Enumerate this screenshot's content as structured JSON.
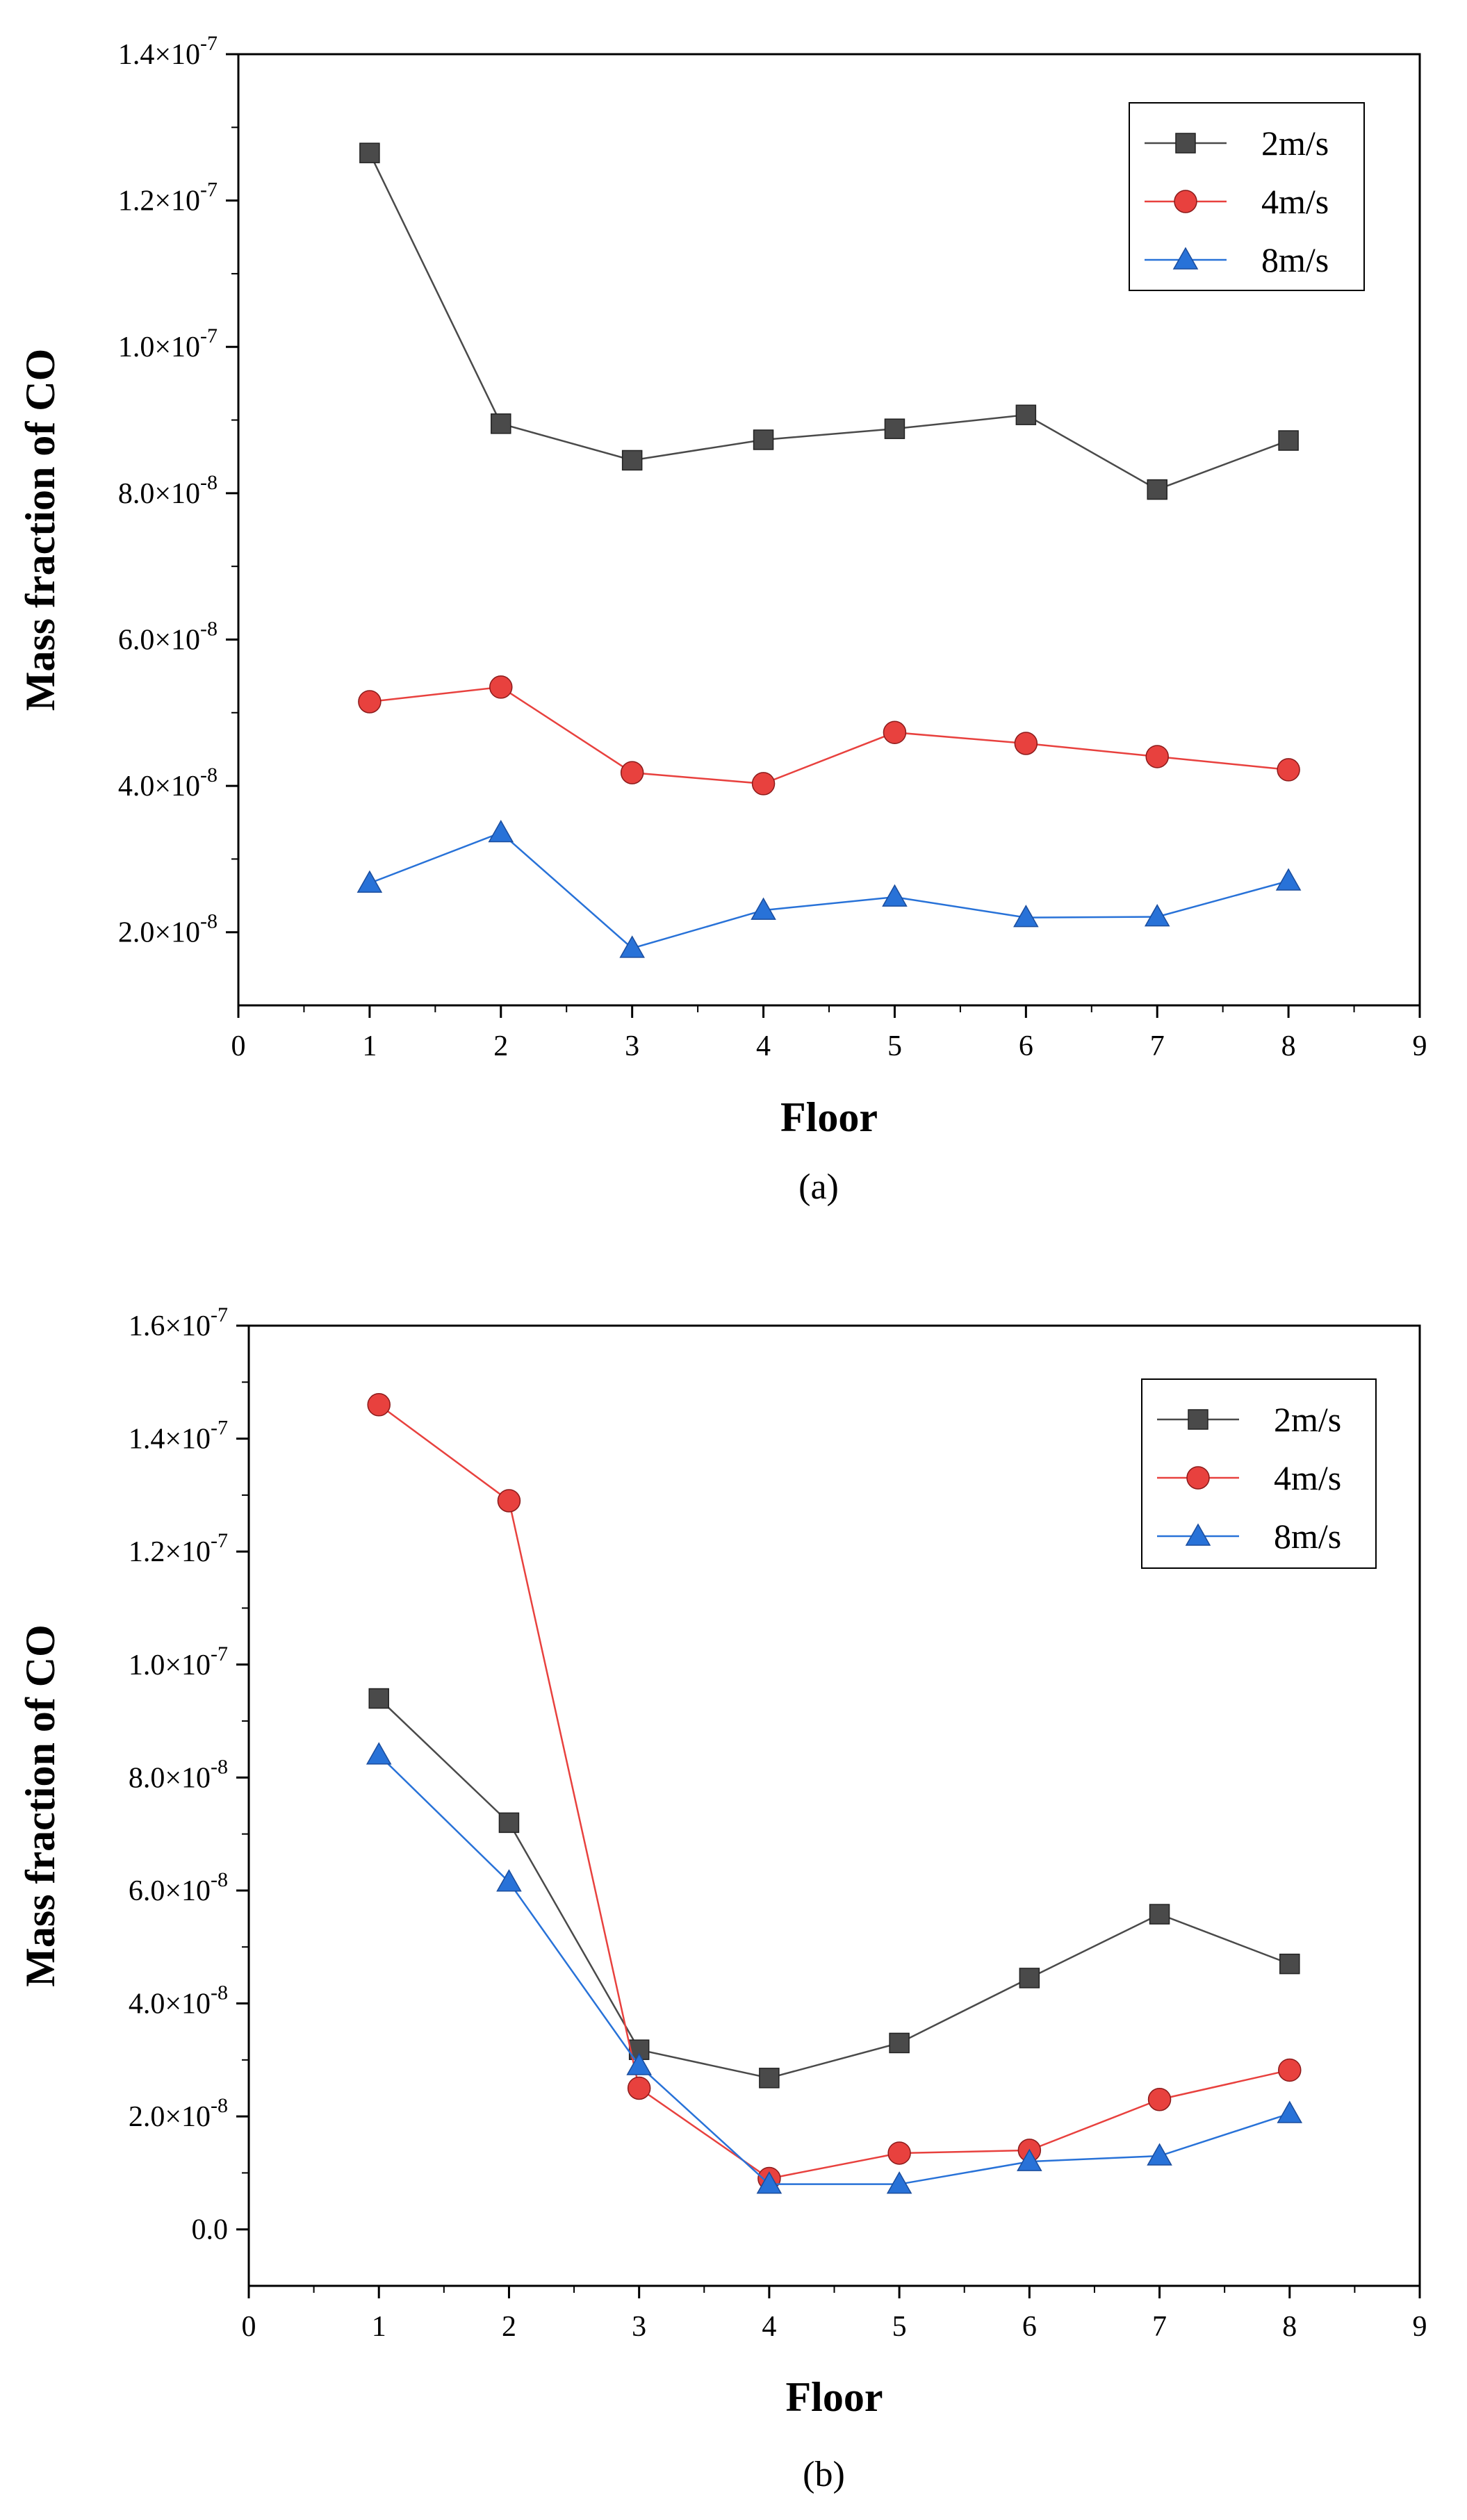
{
  "chart_data": [
    {
      "type": "line",
      "panel_label": "(a)",
      "xlabel": "Floor",
      "ylabel": "Mass fraction of CO",
      "xlim": [
        0,
        9
      ],
      "ylim": [
        1e-08,
        1.4e-07
      ],
      "x_ticks": [
        0,
        1,
        2,
        3,
        4,
        5,
        6,
        7,
        8,
        9
      ],
      "x_tick_labels": [
        "0",
        "1",
        "2",
        "3",
        "4",
        "5",
        "6",
        "7",
        "8",
        "9"
      ],
      "y_ticks": [
        2e-08,
        4e-08,
        6e-08,
        8e-08,
        1e-07,
        1.2e-07,
        1.4e-07
      ],
      "y_tick_labels": [
        {
          "mantissa": "2.0×10",
          "exponent": "-8"
        },
        {
          "mantissa": "4.0×10",
          "exponent": "-8"
        },
        {
          "mantissa": "6.0×10",
          "exponent": "-8"
        },
        {
          "mantissa": "8.0×10",
          "exponent": "-8"
        },
        {
          "mantissa": "1.0×10",
          "exponent": "-7"
        },
        {
          "mantissa": "1.2×10",
          "exponent": "-7"
        },
        {
          "mantissa": "1.4×10",
          "exponent": "-7"
        }
      ],
      "legend_position": "top-right",
      "x": [
        1,
        2,
        3,
        4,
        5,
        6,
        7,
        8
      ],
      "series": [
        {
          "name": "2m/s",
          "marker": "square",
          "color": "#4a4a4a",
          "values": [
            1.265e-07,
            8.95e-08,
            8.45e-08,
            8.73e-08,
            8.88e-08,
            9.07e-08,
            8.05e-08,
            8.72e-08
          ]
        },
        {
          "name": "4m/s",
          "marker": "circle",
          "color": "#e8413e",
          "values": [
            5.15e-08,
            5.35e-08,
            4.18e-08,
            4.03e-08,
            4.73e-08,
            4.58e-08,
            4.4e-08,
            4.22e-08
          ]
        },
        {
          "name": "8m/s",
          "marker": "triangle",
          "color": "#2872d8",
          "values": [
            2.67e-08,
            3.36e-08,
            1.78e-08,
            2.3e-08,
            2.48e-08,
            2.2e-08,
            2.21e-08,
            2.7e-08
          ]
        }
      ]
    },
    {
      "type": "line",
      "panel_label": "(b)",
      "xlabel": "Floor",
      "ylabel": "Mass fraction of CO",
      "xlim": [
        0,
        9
      ],
      "ylim": [
        -1e-08,
        1.6e-07
      ],
      "x_ticks": [
        0,
        1,
        2,
        3,
        4,
        5,
        6,
        7,
        8,
        9
      ],
      "x_tick_labels": [
        "0",
        "1",
        "2",
        "3",
        "4",
        "5",
        "6",
        "7",
        "8",
        "9"
      ],
      "y_ticks": [
        0,
        2e-08,
        4e-08,
        6e-08,
        8e-08,
        1e-07,
        1.2e-07,
        1.4e-07,
        1.6e-07
      ],
      "y_tick_labels": [
        {
          "mantissa": "0.0",
          "exponent": ""
        },
        {
          "mantissa": "2.0×10",
          "exponent": "-8"
        },
        {
          "mantissa": "4.0×10",
          "exponent": "-8"
        },
        {
          "mantissa": "6.0×10",
          "exponent": "-8"
        },
        {
          "mantissa": "8.0×10",
          "exponent": "-8"
        },
        {
          "mantissa": "1.0×10",
          "exponent": "-7"
        },
        {
          "mantissa": "1.2×10",
          "exponent": "-7"
        },
        {
          "mantissa": "1.4×10",
          "exponent": "-7"
        },
        {
          "mantissa": "1.6×10",
          "exponent": "-7"
        }
      ],
      "legend_position": "top-right",
      "x": [
        1,
        2,
        3,
        4,
        5,
        6,
        7,
        8
      ],
      "series": [
        {
          "name": "2m/s",
          "marker": "square",
          "color": "#4a4a4a",
          "values": [
            9.4e-08,
            7.2e-08,
            3.18e-08,
            2.68e-08,
            3.3e-08,
            4.45e-08,
            5.58e-08,
            4.7e-08
          ]
        },
        {
          "name": "4m/s",
          "marker": "circle",
          "color": "#e8413e",
          "values": [
            1.46e-07,
            1.29e-07,
            2.5e-08,
            9e-09,
            1.35e-08,
            1.4e-08,
            2.3e-08,
            2.82e-08
          ]
        },
        {
          "name": "8m/s",
          "marker": "triangle",
          "color": "#2872d8",
          "values": [
            8.4e-08,
            6.15e-08,
            2.9e-08,
            8e-09,
            8e-09,
            1.2e-08,
            1.3e-08,
            2.05e-08
          ]
        }
      ]
    }
  ]
}
